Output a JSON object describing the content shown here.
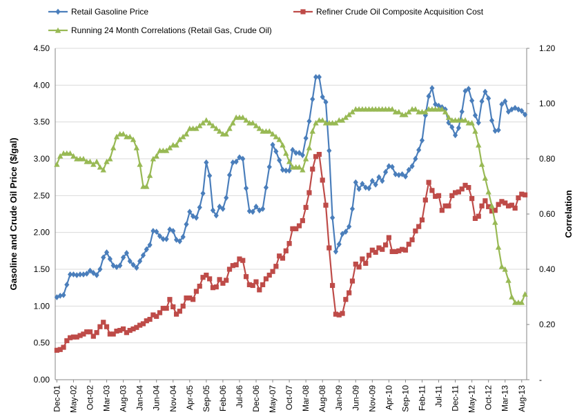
{
  "chart_data": {
    "type": "line",
    "categories": [
      "Dec-01",
      null,
      null,
      null,
      null,
      "May-02",
      null,
      null,
      null,
      null,
      "Oct-02",
      null,
      null,
      null,
      null,
      "Mar-03",
      null,
      null,
      null,
      null,
      "Aug-03",
      null,
      null,
      null,
      null,
      "Jan-04",
      null,
      null,
      null,
      null,
      "Jun-04",
      null,
      null,
      null,
      null,
      "Nov-04",
      null,
      null,
      null,
      null,
      "Apr-05",
      null,
      null,
      null,
      null,
      "Sep-05",
      null,
      null,
      null,
      null,
      "Feb-06",
      null,
      null,
      null,
      null,
      "Jul-06",
      null,
      null,
      null,
      null,
      "Dec-06",
      null,
      null,
      null,
      null,
      "May-07",
      null,
      null,
      null,
      null,
      "Oct-07",
      null,
      null,
      null,
      null,
      "Mar-08",
      null,
      null,
      null,
      null,
      "Aug-08",
      null,
      null,
      null,
      null,
      "Jan-09",
      null,
      null,
      null,
      null,
      "Jun-09",
      null,
      null,
      null,
      null,
      "Nov-09",
      null,
      null,
      null,
      null,
      "Apr-10",
      null,
      null,
      null,
      null,
      "Sep-10",
      null,
      null,
      null,
      null,
      "Feb-11",
      null,
      null,
      null,
      null,
      "Jul-11",
      null,
      null,
      null,
      null,
      "Dec-11",
      null,
      null,
      null,
      null,
      "May-12",
      null,
      null,
      null,
      null,
      "Oct-12",
      null,
      null,
      null,
      null,
      "Mar-13",
      null,
      null,
      null,
      null,
      "Aug-13",
      null
    ],
    "series": [
      {
        "name": "Retail Gasoline Price",
        "color": "#4a7ebb",
        "marker": "diamond",
        "values": [
          1.12,
          1.14,
          1.15,
          1.29,
          1.43,
          1.43,
          1.42,
          1.43,
          1.43,
          1.44,
          1.48,
          1.45,
          1.42,
          1.5,
          1.66,
          1.73,
          1.64,
          1.55,
          1.53,
          1.55,
          1.66,
          1.72,
          1.61,
          1.56,
          1.52,
          1.61,
          1.69,
          1.77,
          1.83,
          2.02,
          2.01,
          1.95,
          1.91,
          1.91,
          2.04,
          2.02,
          1.9,
          1.88,
          1.94,
          2.11,
          2.28,
          2.22,
          2.2,
          2.34,
          2.53,
          2.95,
          2.77,
          2.3,
          2.23,
          2.35,
          2.32,
          2.47,
          2.78,
          2.95,
          2.96,
          3.02,
          3.0,
          2.6,
          2.29,
          2.28,
          2.35,
          2.3,
          2.32,
          2.61,
          2.89,
          3.19,
          3.1,
          2.98,
          2.85,
          2.84,
          2.84,
          3.12,
          3.08,
          3.08,
          3.05,
          3.28,
          3.51,
          3.81,
          4.11,
          4.11,
          3.84,
          3.77,
          3.11,
          2.2,
          1.74,
          1.84,
          1.98,
          2.01,
          2.08,
          2.32,
          2.68,
          2.59,
          2.66,
          2.61,
          2.6,
          2.7,
          2.65,
          2.75,
          2.7,
          2.82,
          2.9,
          2.89,
          2.79,
          2.78,
          2.79,
          2.76,
          2.85,
          2.9,
          3.0,
          3.12,
          3.25,
          3.59,
          3.85,
          3.96,
          3.74,
          3.72,
          3.7,
          3.67,
          3.49,
          3.43,
          3.32,
          3.42,
          3.64,
          3.92,
          3.95,
          3.79,
          3.59,
          3.49,
          3.78,
          3.91,
          3.82,
          3.52,
          3.38,
          3.39,
          3.74,
          3.78,
          3.64,
          3.67,
          3.69,
          3.67,
          3.65,
          3.6
        ]
      },
      {
        "name": "Refiner Crude Oil Composite Acquisition Cost",
        "color": "#be4b48",
        "marker": "square",
        "values": [
          0.4,
          0.41,
          0.44,
          0.53,
          0.57,
          0.58,
          0.58,
          0.6,
          0.62,
          0.65,
          0.65,
          0.59,
          0.64,
          0.72,
          0.78,
          0.72,
          0.62,
          0.62,
          0.66,
          0.67,
          0.69,
          0.64,
          0.67,
          0.69,
          0.71,
          0.74,
          0.76,
          0.8,
          0.82,
          0.88,
          0.86,
          0.91,
          0.97,
          0.97,
          1.09,
          0.99,
          0.89,
          0.93,
          1.0,
          1.11,
          1.11,
          1.09,
          1.2,
          1.27,
          1.39,
          1.42,
          1.37,
          1.25,
          1.26,
          1.36,
          1.31,
          1.35,
          1.5,
          1.55,
          1.56,
          1.64,
          1.62,
          1.4,
          1.29,
          1.28,
          1.33,
          1.22,
          1.29,
          1.37,
          1.42,
          1.47,
          1.54,
          1.68,
          1.65,
          1.75,
          1.85,
          2.05,
          2.05,
          2.09,
          2.16,
          2.34,
          2.54,
          2.86,
          3.03,
          3.06,
          2.71,
          2.37,
          1.79,
          1.28,
          0.89,
          0.88,
          0.9,
          1.09,
          1.18,
          1.34,
          1.57,
          1.53,
          1.64,
          1.58,
          1.69,
          1.76,
          1.73,
          1.79,
          1.77,
          1.83,
          1.93,
          1.74,
          1.74,
          1.75,
          1.77,
          1.76,
          1.84,
          1.9,
          2.02,
          2.08,
          2.17,
          2.44,
          2.68,
          2.57,
          2.49,
          2.5,
          2.3,
          2.36,
          2.36,
          2.5,
          2.54,
          2.55,
          2.59,
          2.64,
          2.61,
          2.46,
          2.19,
          2.22,
          2.36,
          2.43,
          2.35,
          2.29,
          2.3,
          2.38,
          2.42,
          2.4,
          2.36,
          2.37,
          2.33,
          2.47,
          2.52,
          2.51
        ]
      },
      {
        "name": "Running 24 Month Correlations (Retail Gas, Crude Oil)",
        "color": "#98b954",
        "marker": "triangle",
        "axis": "y2",
        "values": [
          0.78,
          0.81,
          0.82,
          0.82,
          0.82,
          0.81,
          0.8,
          0.8,
          0.8,
          0.79,
          0.79,
          0.78,
          0.79,
          0.77,
          0.76,
          0.79,
          0.8,
          0.84,
          0.88,
          0.89,
          0.89,
          0.88,
          0.88,
          0.87,
          0.84,
          0.78,
          0.7,
          0.7,
          0.74,
          0.8,
          0.81,
          0.83,
          0.83,
          0.83,
          0.84,
          0.85,
          0.85,
          0.87,
          0.88,
          0.89,
          0.91,
          0.91,
          0.91,
          0.92,
          0.93,
          0.94,
          0.93,
          0.92,
          0.91,
          0.9,
          0.89,
          0.89,
          0.91,
          0.93,
          0.95,
          0.95,
          0.95,
          0.94,
          0.93,
          0.93,
          0.92,
          0.91,
          0.9,
          0.9,
          0.9,
          0.89,
          0.88,
          0.87,
          0.85,
          0.82,
          0.79,
          0.77,
          0.77,
          0.77,
          0.76,
          0.8,
          0.84,
          0.9,
          0.93,
          0.94,
          0.94,
          0.93,
          0.93,
          0.93,
          0.93,
          0.94,
          0.94,
          0.95,
          0.96,
          0.97,
          0.98,
          0.98,
          0.98,
          0.98,
          0.98,
          0.98,
          0.98,
          0.98,
          0.98,
          0.98,
          0.98,
          0.98,
          0.97,
          0.97,
          0.96,
          0.96,
          0.97,
          0.98,
          0.98,
          0.97,
          0.97,
          0.97,
          0.98,
          0.98,
          0.98,
          0.98,
          0.98,
          0.97,
          0.95,
          0.94,
          0.94,
          0.94,
          0.94,
          0.94,
          0.93,
          0.93,
          0.9,
          0.85,
          0.78,
          0.73,
          0.68,
          0.63,
          0.57,
          0.48,
          0.41,
          0.4,
          0.36,
          0.3,
          0.28,
          0.28,
          0.28,
          0.31
        ]
      }
    ],
    "ylabel": "Gasoline and Crude Oil Price ($/gal)",
    "y2label": "Correlation",
    "ylim": [
      0,
      4.5
    ],
    "yticks": [
      {
        "value": 0,
        "label": "0.00"
      },
      {
        "value": 0.5,
        "label": "0.50"
      },
      {
        "value": 1,
        "label": "1.00"
      },
      {
        "value": 1.5,
        "label": "1.50"
      },
      {
        "value": 2,
        "label": "2.00"
      },
      {
        "value": 2.5,
        "label": "2.50"
      },
      {
        "value": 3,
        "label": "3.00"
      },
      {
        "value": 3.5,
        "label": "3.50"
      },
      {
        "value": 4,
        "label": "4.00"
      },
      {
        "value": 4.5,
        "label": "4.50"
      }
    ],
    "y2lim": [
      0,
      1.2
    ],
    "y2ticks": [
      {
        "value": 0,
        "label": "-"
      },
      {
        "value": 0.2,
        "label": "0.20"
      },
      {
        "value": 0.4,
        "label": "0.40"
      },
      {
        "value": 0.6,
        "label": "0.60"
      },
      {
        "value": 0.8,
        "label": "0.80"
      },
      {
        "value": 1,
        "label": "1.00"
      },
      {
        "value": 1.2,
        "label": "1.20"
      }
    ],
    "grid": true,
    "legend": "top"
  }
}
